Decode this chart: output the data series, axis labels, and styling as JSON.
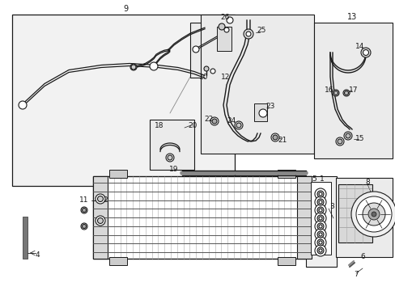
{
  "bg_color": "#ffffff",
  "box_bg": "#f0f0f0",
  "line_color": "#1a1a1a",
  "fig_width": 4.89,
  "fig_height": 3.6,
  "dpi": 100
}
